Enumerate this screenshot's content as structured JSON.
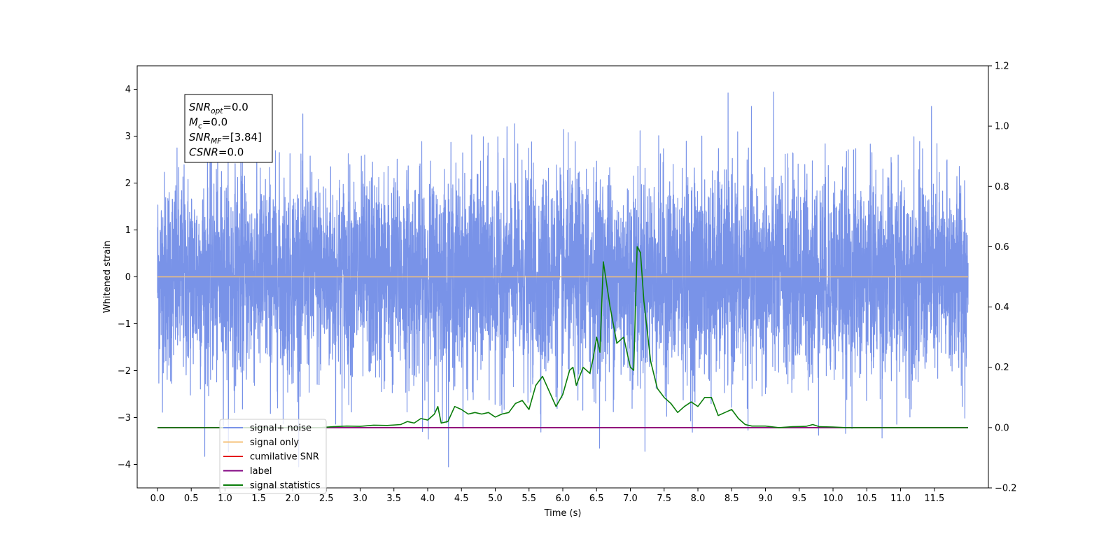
{
  "chart_data": {
    "type": "line",
    "xlabel": "Time (s)",
    "ylabel": "Whitened strain",
    "xlim": [
      -0.3,
      12.3
    ],
    "ylim": [
      -4.5,
      4.5
    ],
    "y2lim": [
      -0.2,
      1.2
    ],
    "grid": false,
    "legend_position": "lower-left",
    "x_ticks": [
      "0.0",
      "0.5",
      "1.0",
      "1.5",
      "2.0",
      "2.5",
      "3.0",
      "3.5",
      "4.0",
      "4.5",
      "5.0",
      "5.5",
      "6.0",
      "6.5",
      "7.0",
      "7.5",
      "8.0",
      "8.5",
      "9.0",
      "9.5",
      "10.0",
      "10.5",
      "11.0",
      "11.5"
    ],
    "y_ticks": [
      "−4",
      "−3",
      "−2",
      "−1",
      "0",
      "1",
      "2",
      "3",
      "4"
    ],
    "y2_ticks": [
      "−0.2",
      "0.0",
      "0.2",
      "0.4",
      "0.6",
      "0.8",
      "1.0",
      "1.2"
    ],
    "annotation": {
      "lines": [
        {
          "name": "SNR",
          "sub": "opt",
          "value": "=0.0"
        },
        {
          "name": "M",
          "sub": "c",
          "value": "=0.0"
        },
        {
          "name": "SNR",
          "sub": "MF",
          "value": "=[3.84]"
        },
        {
          "name": "CSNR",
          "sub": "",
          "value": "=0.0"
        }
      ]
    },
    "series": [
      {
        "name": "signal+ noise",
        "color": "#7993e8",
        "axis": "left",
        "kind": "noise",
        "x_range": [
          0.0,
          12.0
        ],
        "amplitude_range": [
          -4.05,
          4.12
        ]
      },
      {
        "name": "signal only",
        "color": "#f5c27a",
        "axis": "left",
        "x": [
          0.0,
          12.0
        ],
        "y": [
          0.0,
          0.0
        ]
      },
      {
        "name": "cumilative SNR",
        "color": "#e41a1c",
        "axis": "right",
        "x": [
          0.0,
          12.0
        ],
        "y": [
          0.0,
          0.0
        ]
      },
      {
        "name": "label",
        "color": "#800080",
        "axis": "right",
        "x": [
          0.0,
          12.0
        ],
        "y": [
          0.0,
          0.0
        ]
      },
      {
        "name": "signal statistics",
        "color": "#0a7d0a",
        "axis": "right",
        "x": [
          0.0,
          2.4,
          2.6,
          2.8,
          3.0,
          3.2,
          3.4,
          3.6,
          3.7,
          3.8,
          3.9,
          4.0,
          4.1,
          4.15,
          4.2,
          4.3,
          4.4,
          4.5,
          4.6,
          4.7,
          4.8,
          4.9,
          5.0,
          5.1,
          5.2,
          5.3,
          5.4,
          5.5,
          5.6,
          5.7,
          5.8,
          5.9,
          6.0,
          6.1,
          6.15,
          6.2,
          6.3,
          6.4,
          6.45,
          6.5,
          6.55,
          6.6,
          6.7,
          6.8,
          6.9,
          7.0,
          7.05,
          7.1,
          7.15,
          7.2,
          7.3,
          7.4,
          7.5,
          7.6,
          7.7,
          7.8,
          7.9,
          8.0,
          8.1,
          8.2,
          8.3,
          8.4,
          8.5,
          8.6,
          8.7,
          8.8,
          9.0,
          9.2,
          9.4,
          9.6,
          9.7,
          9.8,
          10.0,
          10.2,
          11.0,
          12.0
        ],
        "y": [
          0.0,
          0.0,
          0.003,
          0.005,
          0.004,
          0.008,
          0.007,
          0.01,
          0.02,
          0.015,
          0.03,
          0.025,
          0.045,
          0.07,
          0.015,
          0.02,
          0.07,
          0.06,
          0.045,
          0.05,
          0.045,
          0.05,
          0.035,
          0.045,
          0.05,
          0.08,
          0.09,
          0.06,
          0.14,
          0.17,
          0.12,
          0.07,
          0.11,
          0.19,
          0.2,
          0.14,
          0.2,
          0.18,
          0.23,
          0.3,
          0.25,
          0.55,
          0.4,
          0.28,
          0.3,
          0.2,
          0.19,
          0.6,
          0.58,
          0.42,
          0.22,
          0.13,
          0.1,
          0.08,
          0.05,
          0.07,
          0.085,
          0.07,
          0.1,
          0.1,
          0.04,
          0.05,
          0.06,
          0.03,
          0.01,
          0.005,
          0.005,
          0.0,
          0.003,
          0.004,
          0.01,
          0.003,
          0.002,
          0.0,
          0.0,
          0.0
        ]
      }
    ]
  }
}
